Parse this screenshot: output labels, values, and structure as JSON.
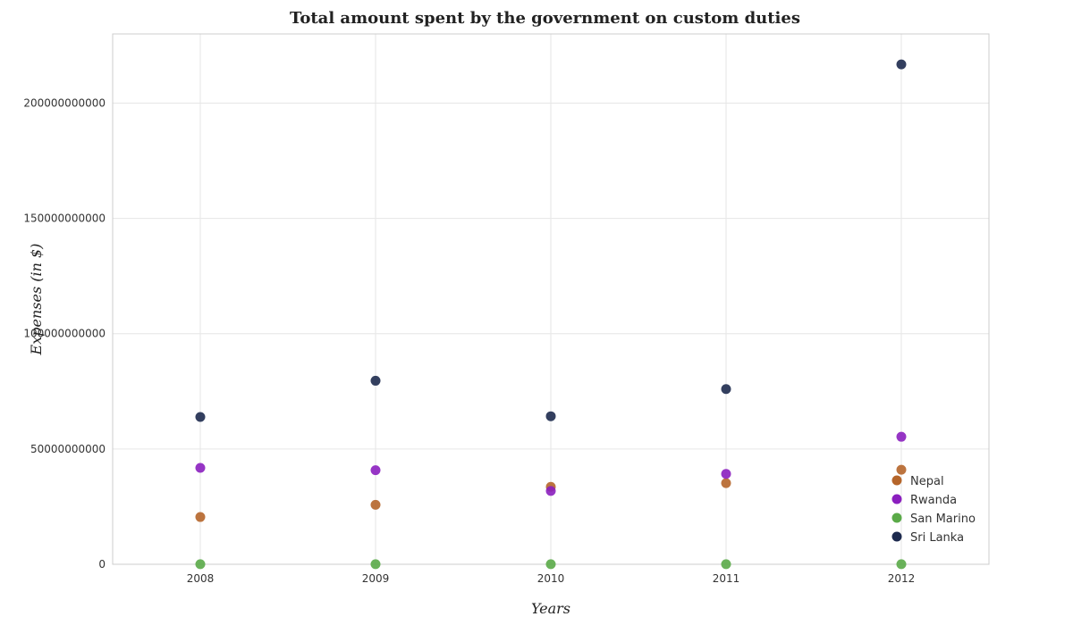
{
  "chart_data": {
    "type": "scatter",
    "title": "Total amount spent by the government on custom duties",
    "xlabel": "Years",
    "ylabel": "Expenses (in $)",
    "categories": [
      "2008",
      "2009",
      "2010",
      "2011",
      "2012"
    ],
    "ylim": [
      0,
      230000000000
    ],
    "yticks": [
      0,
      50000000000,
      100000000000,
      150000000000,
      200000000000
    ],
    "ytick_labels": [
      "0",
      "50000000000",
      "100000000000",
      "150000000000",
      "200000000000"
    ],
    "grid": true,
    "legend_position": "bottom-right",
    "series": [
      {
        "name": "Nepal",
        "color": "#b5652a",
        "values": [
          20500000000,
          25800000000,
          33600000000,
          35200000000,
          41000000000
        ]
      },
      {
        "name": "Rwanda",
        "color": "#8b1fbf",
        "values": [
          41800000000,
          40800000000,
          31800000000,
          39200000000,
          55300000000
        ]
      },
      {
        "name": "San Marino",
        "color": "#5aaa48",
        "values": [
          60000000,
          55000000,
          50000000,
          50000000,
          50000000
        ]
      },
      {
        "name": "Sri Lanka",
        "color": "#1d2a4e",
        "values": [
          63900000000,
          79600000000,
          64200000000,
          76000000000,
          216800000000
        ]
      }
    ]
  }
}
